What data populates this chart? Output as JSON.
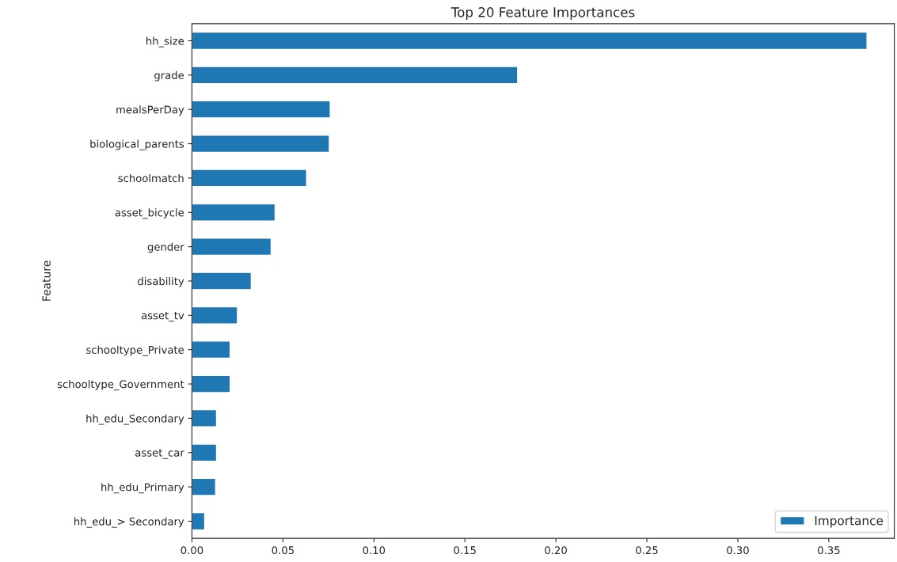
{
  "chart_data": {
    "type": "bar",
    "orientation": "horizontal",
    "title": "Top 20 Feature Importances",
    "ylabel": "Feature",
    "categories": [
      "hh_size",
      "grade",
      "mealsPerDay",
      "biological_parents",
      "schoolmatch",
      "asset_bicycle",
      "gender",
      "disability",
      "asset_tv",
      "schooltype_Private",
      "schooltype_Government",
      "hh_edu_Secondary",
      "asset_car",
      "hh_edu_Primary",
      "hh_edu_> Secondary"
    ],
    "series": [
      {
        "name": "Importance",
        "color": "#1f77b4",
        "values": [
          0.371,
          0.179,
          0.076,
          0.0755,
          0.063,
          0.0457,
          0.0435,
          0.0326,
          0.025,
          0.021,
          0.021,
          0.0135,
          0.0135,
          0.013,
          0.007
        ]
      }
    ],
    "xlim": [
      0,
      0.386
    ],
    "xticks": [
      {
        "value": 0,
        "label": "0.00"
      },
      0.05,
      {
        "value": 0.1,
        "label": "0.10"
      },
      0.15,
      {
        "value": 0.2,
        "label": "0.20"
      },
      0.25,
      {
        "value": 0.3,
        "label": "0.30"
      },
      0.35
    ],
    "legend": "bottom right",
    "grid": false
  }
}
